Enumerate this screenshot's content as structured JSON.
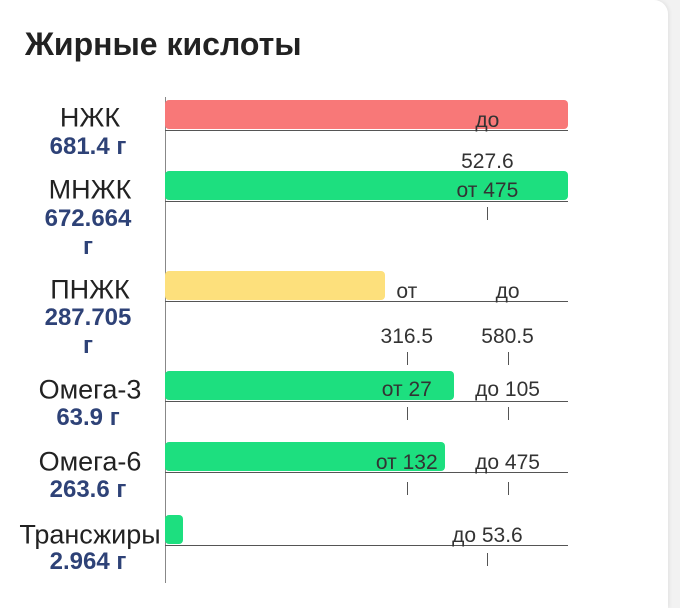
{
  "title": "Жирные кислоты",
  "rows": [
    {
      "name": "НЖК",
      "amount": 681.4,
      "amount_label": "681.4 г",
      "color": "#f87878",
      "markers": [
        {
          "prefix": "до",
          "value": 527.6
        }
      ]
    },
    {
      "name": "МНЖК",
      "amount": 672.664,
      "amount_label": "672.664 г",
      "color": "#1ddf7f",
      "markers": [
        {
          "prefix": "от",
          "value": 475
        }
      ]
    },
    {
      "name": "ПНЖК",
      "amount": 287.705,
      "amount_label": "287.705 г",
      "color": "#fde07c",
      "markers": [
        {
          "prefix": "от",
          "value": 316.5
        },
        {
          "prefix": "до",
          "value": 580.5
        }
      ]
    },
    {
      "name": "Омега-3",
      "amount": 63.9,
      "amount_label": "63.9 г",
      "color": "#1ddf7f",
      "markers": [
        {
          "prefix": "от",
          "value": 27
        },
        {
          "prefix": "до",
          "value": 105
        }
      ]
    },
    {
      "name": "Омега-6",
      "amount": 263.6,
      "amount_label": "263.6 г",
      "color": "#1ddf7f",
      "markers": [
        {
          "prefix": "от",
          "value": 132
        },
        {
          "prefix": "до",
          "value": 475
        }
      ]
    },
    {
      "name": "Трансжиры",
      "amount": 2.964,
      "amount_label": "2.964 г",
      "color": "#1ddf7f",
      "markers": [
        {
          "prefix": "до",
          "value": 53.6
        }
      ]
    }
  ]
}
